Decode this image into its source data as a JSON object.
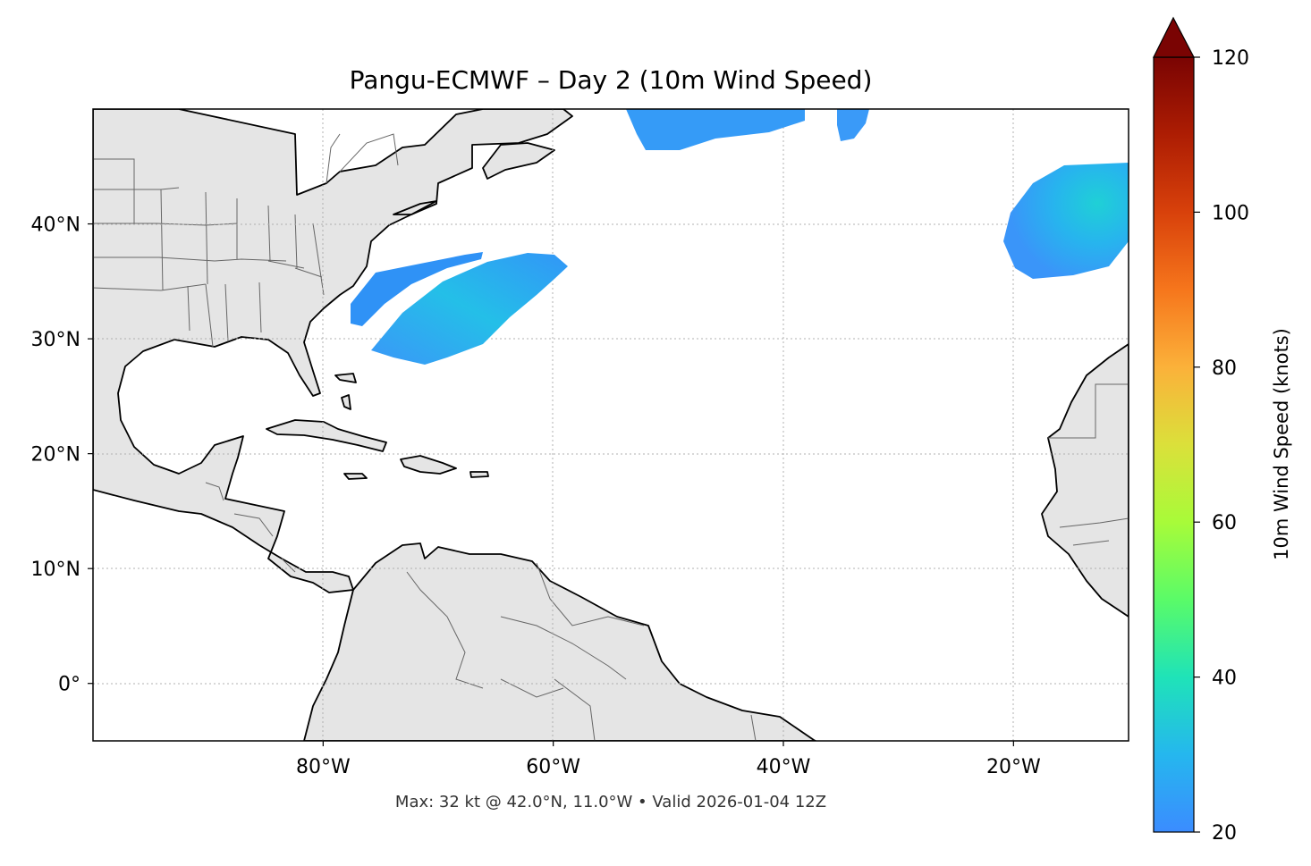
{
  "title": "Pangu-ECMWF – Day 2 (10m Wind Speed)",
  "footer": "Max: 32 kt @ 42.0°N, 11.0°W • Valid 2026-01-04 12Z",
  "map": {
    "projection": "PlateCarree",
    "lon_range": [
      -100,
      -10
    ],
    "lat_range": [
      -5,
      50
    ],
    "land_color": "#e5e5e5",
    "ocean_color": "#ffffff",
    "coastline_color": "#000000",
    "border_color": "#666666",
    "gridlines": true,
    "lon_ticks": [
      {
        "value": -80,
        "label": "80°W"
      },
      {
        "value": -60,
        "label": "60°W"
      },
      {
        "value": -40,
        "label": "40°W"
      },
      {
        "value": -20,
        "label": "20°W"
      }
    ],
    "lat_ticks": [
      {
        "value": 40,
        "label": "40°N"
      },
      {
        "value": 30,
        "label": "30°N"
      },
      {
        "value": 20,
        "label": "20°N"
      },
      {
        "value": 10,
        "label": "10°N"
      },
      {
        "value": 0,
        "label": "0°"
      }
    ]
  },
  "colorbar": {
    "label": "10m Wind Speed (knots)",
    "min": 20,
    "max": 120,
    "extend": "max",
    "colormap": "turbo",
    "ticks": [
      {
        "value": 120,
        "label": "120"
      },
      {
        "value": 100,
        "label": "100"
      },
      {
        "value": 80,
        "label": "80"
      },
      {
        "value": 60,
        "label": "60"
      },
      {
        "value": 40,
        "label": "40"
      },
      {
        "value": 20,
        "label": "20"
      }
    ]
  },
  "wind_regions": [
    {
      "name": "offshore-carolinas-band",
      "peak_kt": 26,
      "color": "#2f8ff6"
    },
    {
      "name": "southwest-atlantic-band",
      "peak_kt": 29,
      "color": "#27b2ef"
    },
    {
      "name": "north-atlantic-band",
      "peak_kt": 25,
      "color": "#359bf7"
    },
    {
      "name": "north-atlantic-patch",
      "peak_kt": 24,
      "color": "#3a9af8"
    },
    {
      "name": "iberia-offshore-area",
      "peak_kt": 32,
      "color": "#21c3e2"
    }
  ]
}
